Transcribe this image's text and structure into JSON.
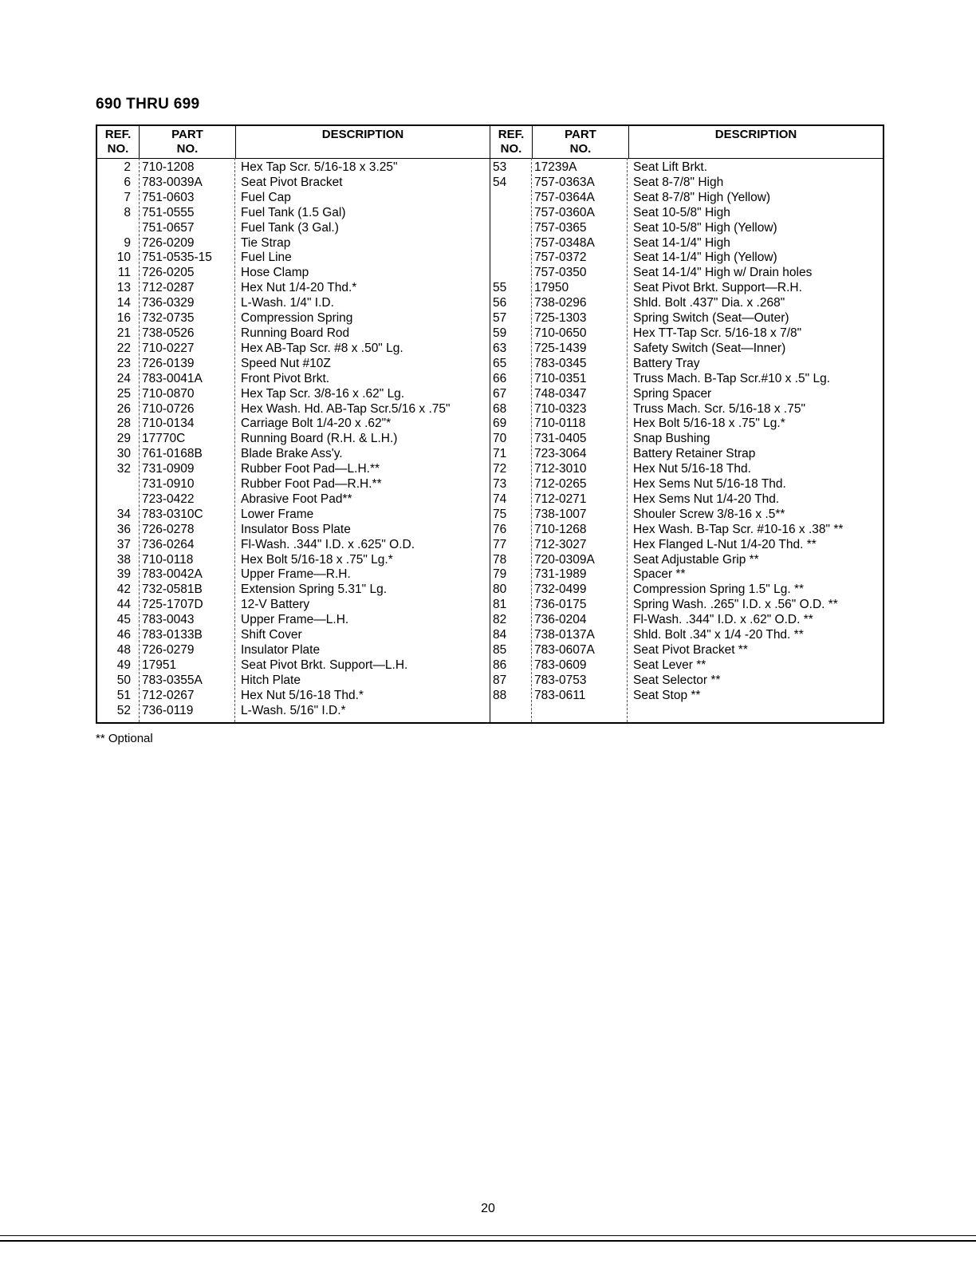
{
  "title": "690 THRU 699",
  "headers": {
    "ref1": "REF.",
    "ref2": "NO.",
    "part1": "PART",
    "part2": "NO.",
    "desc": "DESCRIPTION"
  },
  "left_rows": [
    {
      "ref": "2",
      "part": "710-1208",
      "desc": "Hex Tap Scr. 5/16-18 x 3.25\""
    },
    {
      "ref": "6",
      "part": "783-0039A",
      "desc": "Seat Pivot Bracket"
    },
    {
      "ref": "7",
      "part": "751-0603",
      "desc": "Fuel Cap"
    },
    {
      "ref": "8",
      "part": "751-0555",
      "desc": "Fuel Tank (1.5 Gal)"
    },
    {
      "ref": "",
      "part": "751-0657",
      "desc": "Fuel Tank (3 Gal.)"
    },
    {
      "ref": "9",
      "part": "726-0209",
      "desc": "Tie Strap"
    },
    {
      "ref": "10",
      "part": "751-0535-15",
      "desc": "Fuel Line"
    },
    {
      "ref": "11",
      "part": "726-0205",
      "desc": "Hose Clamp"
    },
    {
      "ref": "13",
      "part": "712-0287",
      "desc": "Hex Nut 1/4-20 Thd.*"
    },
    {
      "ref": "14",
      "part": "736-0329",
      "desc": "L-Wash. 1/4\" I.D."
    },
    {
      "ref": "16",
      "part": "732-0735",
      "desc": "Compression Spring"
    },
    {
      "ref": "21",
      "part": "738-0526",
      "desc": "Running Board Rod"
    },
    {
      "ref": "22",
      "part": "710-0227",
      "desc": "Hex AB-Tap Scr. #8 x .50\" Lg."
    },
    {
      "ref": "23",
      "part": "726-0139",
      "desc": "Speed Nut #10Z"
    },
    {
      "ref": "24",
      "part": "783-0041A",
      "desc": "Front Pivot Brkt."
    },
    {
      "ref": "25",
      "part": "710-0870",
      "desc": "Hex Tap Scr. 3/8-16 x .62\" Lg."
    },
    {
      "ref": "26",
      "part": "710-0726",
      "desc": "Hex Wash. Hd. AB-Tap Scr.5/16 x .75\""
    },
    {
      "ref": "28",
      "part": "710-0134",
      "desc": "Carriage Bolt 1/4-20 x .62\"*"
    },
    {
      "ref": "29",
      "part": "17770C",
      "desc": "Running Board (R.H. & L.H.)"
    },
    {
      "ref": "30",
      "part": "761-0168B",
      "desc": "Blade Brake Ass'y."
    },
    {
      "ref": "32",
      "part": "731-0909",
      "desc": "Rubber Foot Pad—L.H.**"
    },
    {
      "ref": "",
      "part": "731-0910",
      "desc": "Rubber Foot Pad—R.H.**"
    },
    {
      "ref": "",
      "part": "723-0422",
      "desc": "Abrasive Foot Pad**"
    },
    {
      "ref": "34",
      "part": "783-0310C",
      "desc": "Lower Frame"
    },
    {
      "ref": "36",
      "part": "726-0278",
      "desc": "Insulator Boss Plate"
    },
    {
      "ref": "37",
      "part": "736-0264",
      "desc": "Fl-Wash. .344\" I.D. x .625\" O.D."
    },
    {
      "ref": "38",
      "part": "710-0118",
      "desc": "Hex Bolt 5/16-18 x .75\" Lg.*"
    },
    {
      "ref": "39",
      "part": "783-0042A",
      "desc": "Upper Frame—R.H."
    },
    {
      "ref": "42",
      "part": "732-0581B",
      "desc": "Extension Spring 5.31\" Lg."
    },
    {
      "ref": "44",
      "part": "725-1707D",
      "desc": "12-V Battery"
    },
    {
      "ref": "45",
      "part": "783-0043",
      "desc": "Upper Frame—L.H."
    },
    {
      "ref": "46",
      "part": "783-0133B",
      "desc": "Shift Cover"
    },
    {
      "ref": "48",
      "part": "726-0279",
      "desc": "Insulator Plate"
    },
    {
      "ref": "49",
      "part": "17951",
      "desc": "Seat Pivot Brkt. Support—L.H."
    },
    {
      "ref": "50",
      "part": "783-0355A",
      "desc": "Hitch Plate"
    },
    {
      "ref": "51",
      "part": "712-0267",
      "desc": "Hex Nut 5/16-18 Thd.*"
    },
    {
      "ref": "52",
      "part": "736-0119",
      "desc": "L-Wash. 5/16\" I.D.*"
    }
  ],
  "right_rows": [
    {
      "ref": "53",
      "part": "17239A",
      "desc": "Seat Lift Brkt."
    },
    {
      "ref": "54",
      "part": "757-0363A",
      "desc": "Seat 8-7/8\" High"
    },
    {
      "ref": "",
      "part": "757-0364A",
      "desc": "Seat 8-7/8\" High (Yellow)"
    },
    {
      "ref": "",
      "part": "757-0360A",
      "desc": "Seat 10-5/8\" High"
    },
    {
      "ref": "",
      "part": "757-0365",
      "desc": "Seat 10-5/8\" High (Yellow)"
    },
    {
      "ref": "",
      "part": "757-0348A",
      "desc": "Seat 14-1/4\" High"
    },
    {
      "ref": "",
      "part": "757-0372",
      "desc": "Seat 14-1/4\" High (Yellow)"
    },
    {
      "ref": "",
      "part": "757-0350",
      "desc": "Seat 14-1/4\" High w/ Drain holes"
    },
    {
      "ref": "55",
      "part": "17950",
      "desc": "Seat Pivot Brkt. Support—R.H."
    },
    {
      "ref": "56",
      "part": "738-0296",
      "desc": "Shld. Bolt .437\" Dia. x .268\""
    },
    {
      "ref": "57",
      "part": "725-1303",
      "desc": "Spring Switch (Seat—Outer)"
    },
    {
      "ref": "59",
      "part": "710-0650",
      "desc": "Hex TT-Tap Scr. 5/16-18 x 7/8\""
    },
    {
      "ref": "63",
      "part": "725-1439",
      "desc": "Safety Switch (Seat—Inner)"
    },
    {
      "ref": "65",
      "part": "783-0345",
      "desc": "Battery Tray"
    },
    {
      "ref": "66",
      "part": "710-0351",
      "desc": "Truss Mach. B-Tap Scr.#10 x .5\" Lg."
    },
    {
      "ref": "67",
      "part": "748-0347",
      "desc": "Spring Spacer"
    },
    {
      "ref": "68",
      "part": "710-0323",
      "desc": "Truss Mach. Scr. 5/16-18 x .75\""
    },
    {
      "ref": "69",
      "part": "710-0118",
      "desc": "Hex Bolt 5/16-18 x .75\" Lg.*"
    },
    {
      "ref": "70",
      "part": "731-0405",
      "desc": "Snap Bushing"
    },
    {
      "ref": "71",
      "part": "723-3064",
      "desc": "Battery Retainer Strap"
    },
    {
      "ref": "72",
      "part": "712-3010",
      "desc": "Hex Nut 5/16-18 Thd."
    },
    {
      "ref": "73",
      "part": "712-0265",
      "desc": "Hex Sems Nut 5/16-18 Thd."
    },
    {
      "ref": "74",
      "part": "712-0271",
      "desc": "Hex Sems Nut 1/4-20 Thd."
    },
    {
      "ref": "75",
      "part": "738-1007",
      "desc": "Shouler Screw 3/8-16 x .5**"
    },
    {
      "ref": "76",
      "part": "710-1268",
      "desc": "Hex Wash. B-Tap Scr. #10-16 x .38\" **"
    },
    {
      "ref": "77",
      "part": "712-3027",
      "desc": "Hex Flanged L-Nut 1/4-20 Thd. **"
    },
    {
      "ref": "78",
      "part": "720-0309A",
      "desc": "Seat Adjustable Grip **"
    },
    {
      "ref": "79",
      "part": "731-1989",
      "desc": "Spacer **"
    },
    {
      "ref": "80",
      "part": "732-0499",
      "desc": "Compression Spring 1.5\" Lg. **"
    },
    {
      "ref": "81",
      "part": "736-0175",
      "desc": "Spring Wash. .265\" I.D. x .56\" O.D. **"
    },
    {
      "ref": "82",
      "part": "736-0204",
      "desc": "Fl-Wash. .344\" I.D. x .62\" O.D. **"
    },
    {
      "ref": "84",
      "part": "738-0137A",
      "desc": "Shld. Bolt .34\" x 1/4 -20 Thd. **"
    },
    {
      "ref": "85",
      "part": "783-0607A",
      "desc": "Seat Pivot Bracket **"
    },
    {
      "ref": "86",
      "part": "783-0609",
      "desc": "Seat Lever **"
    },
    {
      "ref": "87",
      "part": "783-0753",
      "desc": "Seat Selector **"
    },
    {
      "ref": "88",
      "part": "783-0611",
      "desc": "Seat Stop **"
    }
  ],
  "footnote": "** Optional",
  "page_number": "20"
}
